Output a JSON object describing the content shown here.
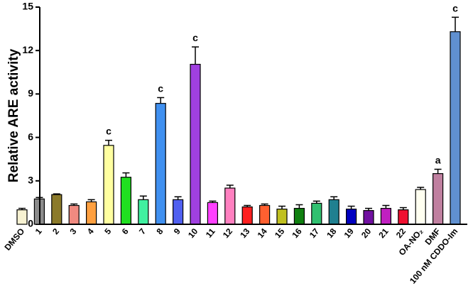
{
  "chart_data": {
    "type": "bar",
    "y_label": "Relative ARE activity",
    "categories": [
      "DMSO",
      "1",
      "2",
      "3",
      "4",
      "5",
      "6",
      "7",
      "8",
      "9",
      "10",
      "11",
      "12",
      "13",
      "14",
      "15",
      "16",
      "17",
      "18",
      "19",
      "20",
      "21",
      "22",
      "OA-NO₂",
      "DMF",
      "100 nM CDDO-Im"
    ],
    "values": [
      1.0,
      1.75,
      2.05,
      1.3,
      1.55,
      5.45,
      3.25,
      1.7,
      8.35,
      1.7,
      11.05,
      1.5,
      2.5,
      1.2,
      1.3,
      1.05,
      1.1,
      1.45,
      1.7,
      1.05,
      0.95,
      1.1,
      1.0,
      2.4,
      3.5,
      13.3
    ],
    "errors": [
      0.1,
      0.1,
      0.05,
      0.1,
      0.15,
      0.35,
      0.3,
      0.25,
      0.4,
      0.2,
      1.2,
      0.1,
      0.2,
      0.1,
      0.1,
      0.2,
      0.25,
      0.15,
      0.2,
      0.2,
      0.15,
      0.2,
      0.15,
      0.15,
      0.3,
      1.0
    ],
    "colors": [
      "#f7f2d2",
      "#8c8c8c",
      "#8b7a2a",
      "#f08a80",
      "#ffa040",
      "#ffffa0",
      "#20e020",
      "#40f0a0",
      "#4090f0",
      "#5060f0",
      "#a040e0",
      "#ff40ff",
      "#ff80c0",
      "#ff2020",
      "#ff6030",
      "#c0c020",
      "#108010",
      "#30c070",
      "#208090",
      "#0000c0",
      "#7010a0",
      "#c020c0",
      "#f01030",
      "#fffff0",
      "#c080a0",
      "#6090d0"
    ],
    "significance": [
      null,
      null,
      null,
      null,
      null,
      "c",
      null,
      null,
      "c",
      null,
      "c",
      null,
      null,
      null,
      null,
      null,
      null,
      null,
      null,
      null,
      null,
      null,
      null,
      null,
      "a",
      "c"
    ],
    "ylim": [
      0,
      15
    ],
    "yticks": [
      0,
      3,
      6,
      9,
      12,
      15
    ],
    "grid": false
  }
}
